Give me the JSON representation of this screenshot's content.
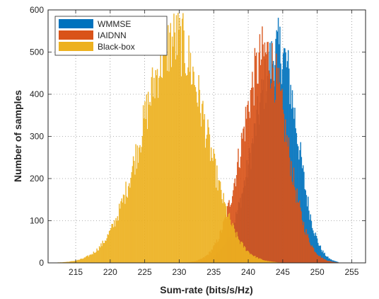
{
  "chart_data": {
    "type": "histogram",
    "xlabel": "Sum-rate (bits/s/Hz)",
    "ylabel": "Number of samples",
    "xlim": [
      211,
      257
    ],
    "ylim": [
      0,
      600
    ],
    "xticks": [
      215,
      220,
      225,
      230,
      235,
      240,
      245,
      250,
      255
    ],
    "yticks": [
      0,
      100,
      200,
      300,
      400,
      500,
      600
    ],
    "grid": true,
    "legend_position": "top-left",
    "series": [
      {
        "name": "WMMSE",
        "color": "#0072BD",
        "peak_x": 244.5,
        "peak_y": 520,
        "sigma_left": 3.6,
        "sigma_right": 2.6,
        "x_min": 230,
        "x_max": 253
      },
      {
        "name": "IAIDNN",
        "color": "#D95319",
        "peak_x": 242.5,
        "peak_y": 510,
        "sigma_left": 3.3,
        "sigma_right": 3.0,
        "x_min": 229,
        "x_max": 254
      },
      {
        "name": "Black-box",
        "color": "#EDB120",
        "peak_x": 229.5,
        "peak_y": 545,
        "sigma_left": 4.8,
        "sigma_right": 4.3,
        "x_min": 212,
        "x_max": 245
      }
    ]
  }
}
